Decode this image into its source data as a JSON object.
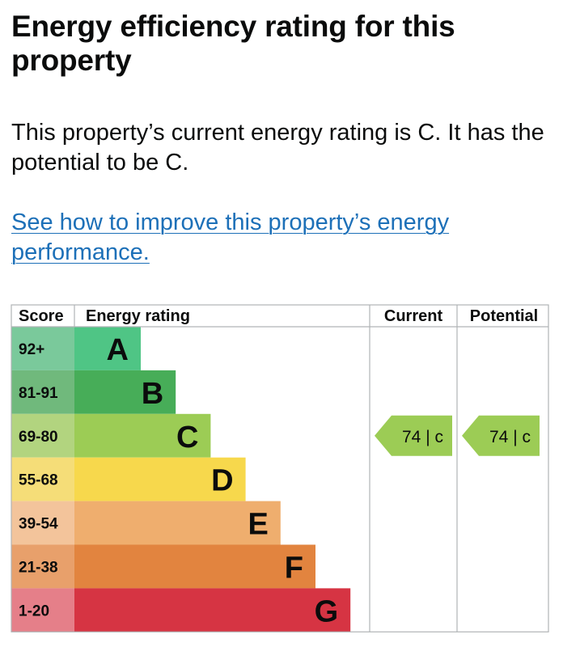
{
  "heading": "Energy efficiency rating for this property",
  "summary": "This property’s current energy rating is C. It has the potential to be C.",
  "improve_link": "See how to improve this property’s energy performance.",
  "table": {
    "headers": {
      "score": "Score",
      "rating": "Energy rating",
      "current": "Current",
      "potential": "Potential"
    },
    "bands": [
      {
        "letter": "A",
        "score": "92+",
        "color": "#4fc585",
        "score_bg": "#7ac99b"
      },
      {
        "letter": "B",
        "score": "81-91",
        "color": "#47ad58",
        "score_bg": "#70b97c"
      },
      {
        "letter": "C",
        "score": "69-80",
        "color": "#9ccc55",
        "score_bg": "#b2d47f"
      },
      {
        "letter": "D",
        "score": "55-68",
        "color": "#f7d84c",
        "score_bg": "#f5dd78"
      },
      {
        "letter": "E",
        "score": "39-54",
        "color": "#efae6e",
        "score_bg": "#f3c49b"
      },
      {
        "letter": "F",
        "score": "21-38",
        "color": "#e2843f",
        "score_bg": "#e8a06b"
      },
      {
        "letter": "G",
        "score": "1-20",
        "color": "#d63443",
        "score_bg": "#e57f89"
      }
    ],
    "current": {
      "value": 74,
      "letter": "c",
      "label": "74 | c",
      "band": "C",
      "color": "#9ccc55"
    },
    "potential": {
      "value": 74,
      "letter": "c",
      "label": "74 | c",
      "band": "C",
      "color": "#9ccc55"
    }
  },
  "colors": {
    "link": "#1d70b8",
    "grid": "#b1b4b6",
    "text": "#0b0c0c"
  }
}
